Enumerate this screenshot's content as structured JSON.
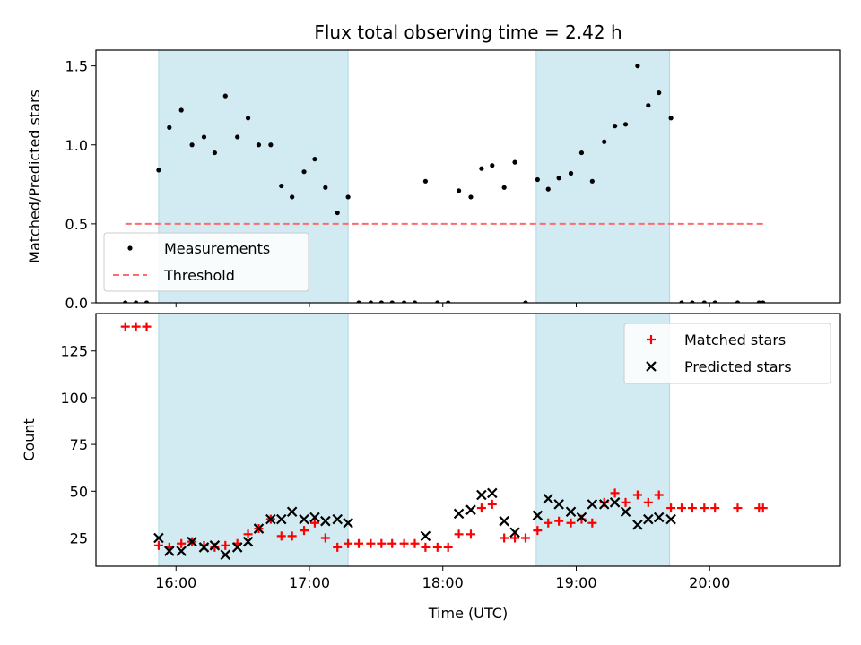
{
  "title": "Flux total observing time = 2.42 h",
  "colors": {
    "shade": "#add8e6",
    "threshold": "#ff6b6b",
    "measurement": "#000000",
    "matched": "#ff0000",
    "predicted": "#000000"
  },
  "chart_data": [
    {
      "type": "scatter",
      "ylabel": "Matched/Predicted stars",
      "xlim": [
        15.4,
        20.98
      ],
      "ylim": [
        0,
        1.6
      ],
      "yticks": [
        0.0,
        0.5,
        1.0,
        1.5
      ],
      "ytick_labels": [
        "0.0",
        "0.5",
        "1.0",
        "1.5"
      ],
      "shaded_intervals": [
        [
          15.87,
          17.29
        ],
        [
          18.7,
          19.7
        ]
      ],
      "legend": {
        "placement": "lower-left",
        "entries": [
          "Measurements",
          "Threshold"
        ]
      },
      "series": [
        {
          "name": "Measurements",
          "marker": "dot",
          "x": [
            15.62,
            15.7,
            15.78,
            15.87,
            15.95,
            16.04,
            16.12,
            16.21,
            16.29,
            16.37,
            16.46,
            16.54,
            16.62,
            16.71,
            16.79,
            16.87,
            16.96,
            17.04,
            17.12,
            17.21,
            17.29,
            17.37,
            17.46,
            17.54,
            17.62,
            17.71,
            17.79,
            17.87,
            17.96,
            18.04,
            18.12,
            18.21,
            18.29,
            18.37,
            18.46,
            18.54,
            18.62,
            18.71,
            18.79,
            18.87,
            18.96,
            19.04,
            19.12,
            19.21,
            19.29,
            19.37,
            19.46,
            19.54,
            19.62,
            19.71,
            19.79,
            19.87,
            19.96,
            20.04,
            20.21,
            20.37,
            20.4
          ],
          "y": [
            0,
            0,
            0,
            0.84,
            1.11,
            1.22,
            1.0,
            1.05,
            0.95,
            1.31,
            1.05,
            1.17,
            1.0,
            1.0,
            0.74,
            0.67,
            0.83,
            0.91,
            0.73,
            0.57,
            0.67,
            0,
            0,
            0,
            0,
            0,
            0,
            0.77,
            0,
            0,
            0.71,
            0.67,
            0.85,
            0.87,
            0.73,
            0.89,
            0,
            0.78,
            0.72,
            0.79,
            0.82,
            0.95,
            0.77,
            1.02,
            1.12,
            1.13,
            1.5,
            1.25,
            1.33,
            1.17,
            0,
            0,
            0,
            0,
            0,
            0,
            0
          ]
        },
        {
          "name": "Threshold",
          "type": "line",
          "x": [
            15.62,
            20.4
          ],
          "y": [
            0.5,
            0.5
          ]
        }
      ]
    },
    {
      "type": "scatter",
      "xlabel": "Time (UTC)",
      "ylabel": "Count",
      "xlim": [
        15.4,
        20.98
      ],
      "ylim": [
        9.9,
        145
      ],
      "xticks": [
        16,
        17,
        18,
        19,
        20
      ],
      "xtick_labels": [
        "16:00",
        "17:00",
        "18:00",
        "19:00",
        "20:00"
      ],
      "yticks": [
        25,
        50,
        75,
        100,
        125
      ],
      "ytick_labels": [
        "25",
        "50",
        "75",
        "100",
        "125"
      ],
      "shaded_intervals": [
        [
          15.87,
          17.29
        ],
        [
          18.7,
          19.7
        ]
      ],
      "legend": {
        "placement": "top-right",
        "entries": [
          "Matched stars",
          "Predicted stars"
        ]
      },
      "series": [
        {
          "name": "Matched stars",
          "marker": "plus",
          "x": [
            15.62,
            15.7,
            15.78,
            15.87,
            15.95,
            16.04,
            16.12,
            16.21,
            16.29,
            16.37,
            16.46,
            16.54,
            16.62,
            16.71,
            16.79,
            16.87,
            16.96,
            17.04,
            17.12,
            17.21,
            17.29,
            17.37,
            17.46,
            17.54,
            17.62,
            17.71,
            17.79,
            17.87,
            17.96,
            18.04,
            18.12,
            18.21,
            18.29,
            18.37,
            18.46,
            18.54,
            18.62,
            18.71,
            18.79,
            18.87,
            18.96,
            19.04,
            19.12,
            19.21,
            19.29,
            19.37,
            19.46,
            19.54,
            19.62,
            19.71,
            19.79,
            19.87,
            19.96,
            20.04,
            20.21,
            20.37,
            20.4
          ],
          "y": [
            138,
            138,
            138,
            21,
            20,
            22,
            23,
            21,
            20,
            21,
            22,
            27,
            30,
            35,
            26,
            26,
            29,
            33,
            25,
            20,
            22,
            22,
            22,
            22,
            22,
            22,
            22,
            20,
            20,
            20,
            27,
            27,
            41,
            43,
            25,
            25,
            25,
            29,
            33,
            34,
            33,
            35,
            33,
            44,
            49,
            44,
            48,
            44,
            48,
            41,
            41,
            41,
            41,
            41,
            41,
            41,
            41
          ]
        },
        {
          "name": "Predicted stars",
          "marker": "x",
          "x": [
            15.87,
            15.95,
            16.04,
            16.12,
            16.21,
            16.29,
            16.37,
            16.46,
            16.54,
            16.62,
            16.71,
            16.79,
            16.87,
            16.96,
            17.04,
            17.12,
            17.21,
            17.29,
            17.87,
            18.12,
            18.21,
            18.29,
            18.37,
            18.46,
            18.54,
            18.71,
            18.79,
            18.87,
            18.96,
            19.04,
            19.12,
            19.21,
            19.29,
            19.37,
            19.46,
            19.54,
            19.62,
            19.71
          ],
          "y": [
            25,
            18,
            18,
            23,
            20,
            21,
            16,
            20,
            23,
            30,
            35,
            35,
            39,
            35,
            36,
            34,
            35,
            33,
            26,
            38,
            40,
            48,
            49,
            34,
            28,
            37,
            46,
            43,
            39,
            36,
            43,
            43,
            44,
            39,
            32,
            35,
            36,
            35
          ]
        }
      ]
    }
  ]
}
